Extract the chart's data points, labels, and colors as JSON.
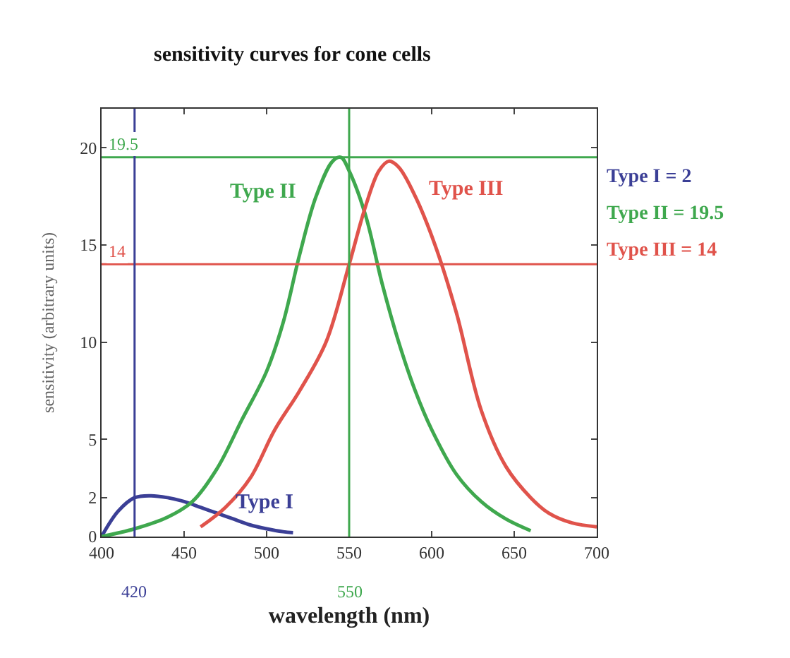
{
  "chart_data": {
    "type": "line",
    "title": "sensitivity curves for cone cells",
    "xlabel": "wavelength (nm)",
    "ylabel": "sensitivity (arbitrary units)",
    "xlim": [
      400,
      700
    ],
    "xticks": [
      400,
      450,
      500,
      550,
      600,
      650,
      700
    ],
    "ylim": [
      0,
      22
    ],
    "yticks": [
      0,
      2,
      5,
      10,
      15,
      20
    ],
    "legend": false,
    "marker": "none",
    "line_style": "solid",
    "series": [
      {
        "name": "Type I",
        "color": "#3b3f96",
        "x": [
          400,
          410,
          420,
          430,
          440,
          450,
          460,
          470,
          480,
          490,
          500,
          510,
          516
        ],
        "values": [
          0,
          1.3,
          2,
          2.1,
          2.0,
          1.8,
          1.5,
          1.2,
          0.9,
          0.6,
          0.4,
          0.25,
          0.2
        ]
      },
      {
        "name": "Type II",
        "color": "#3fa84e",
        "x": [
          400,
          420,
          440,
          455,
          470,
          485,
          500,
          510,
          520,
          530,
          540,
          545,
          550,
          560,
          570,
          580,
          590,
          600,
          615,
          630,
          645,
          660
        ],
        "values": [
          0,
          0.4,
          1.0,
          1.8,
          3.5,
          6.0,
          8.5,
          11,
          14.5,
          17.5,
          19.3,
          19.5,
          18.8,
          16.5,
          13,
          10,
          7.5,
          5.5,
          3.2,
          1.8,
          0.9,
          0.3
        ]
      },
      {
        "name": "Type III",
        "color": "#e0534b",
        "x": [
          460,
          475,
          490,
          505,
          520,
          536,
          550,
          560,
          568,
          574,
          580,
          590,
          602,
          615,
          630,
          645,
          660,
          671,
          685,
          700
        ],
        "values": [
          0.5,
          1.5,
          3.0,
          5.5,
          7.5,
          10,
          14,
          17,
          18.8,
          19.3,
          19.0,
          17.5,
          15,
          11.5,
          6.5,
          3.6,
          2.0,
          1.2,
          0.7,
          0.5
        ]
      }
    ],
    "ref_lines": [
      {
        "axis": "y",
        "value": 19.5,
        "label": "19.5",
        "color": "#3fa84e"
      },
      {
        "axis": "y",
        "value": 14,
        "label": "14",
        "color": "#e0534b"
      },
      {
        "axis": "x",
        "value": 550,
        "label": "550",
        "color": "#3fa84e"
      },
      {
        "axis": "x",
        "value": 420,
        "label": "420",
        "color": "#3b3f96"
      }
    ],
    "annotations": [
      "Type I = 2",
      "Type II = 19.5",
      "Type III = 14"
    ]
  }
}
